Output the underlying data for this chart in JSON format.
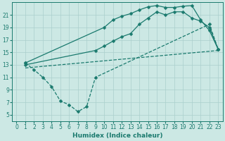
{
  "xlabel": "Humidex (Indice chaleur)",
  "bg_color": "#cce8e4",
  "line_color": "#1a7a6e",
  "grid_color": "#aacfcc",
  "xlim": [
    -0.5,
    23.5
  ],
  "ylim": [
    4,
    23
  ],
  "xticks": [
    0,
    1,
    2,
    3,
    4,
    5,
    6,
    7,
    8,
    9,
    10,
    11,
    12,
    13,
    14,
    15,
    16,
    17,
    18,
    19,
    20,
    21,
    22,
    23
  ],
  "yticks": [
    5,
    7,
    9,
    11,
    13,
    15,
    17,
    19,
    21
  ],
  "line1_x": [
    1,
    2,
    3,
    4,
    5,
    6,
    7,
    8,
    9,
    22,
    23
  ],
  "line1_y": [
    13.3,
    12.2,
    11.0,
    9.5,
    7.2,
    6.6,
    5.5,
    6.3,
    11.0,
    19.5,
    15.5
  ],
  "line2_x": [
    1,
    10,
    11,
    12,
    13,
    14,
    15,
    16,
    17,
    18,
    19,
    20,
    21,
    22,
    23
  ],
  "line2_y": [
    13.3,
    19.0,
    20.2,
    20.8,
    21.2,
    21.8,
    22.3,
    22.5,
    22.2,
    22.2,
    22.4,
    22.5,
    20.2,
    18.5,
    15.5
  ],
  "line3_x": [
    1,
    9,
    10,
    11,
    12,
    13,
    14,
    15,
    16,
    17,
    18,
    19,
    20,
    21,
    22,
    23
  ],
  "line3_y": [
    13.0,
    15.3,
    16.0,
    16.8,
    17.5,
    18.0,
    19.5,
    20.5,
    21.5,
    21.0,
    21.5,
    21.5,
    20.5,
    20.0,
    19.0,
    15.5
  ],
  "markersize": 2.5,
  "linewidth": 0.9,
  "tick_fontsize": 5.5,
  "label_fontsize": 6.5
}
